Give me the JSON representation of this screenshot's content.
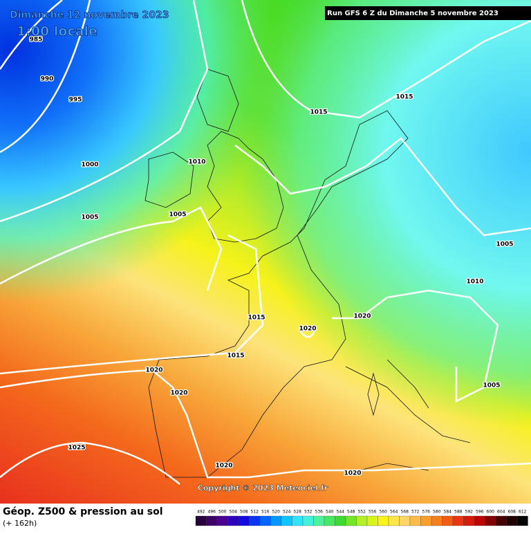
{
  "header": {
    "title": "Dimanche 12 novembre 2023",
    "time": "1:00 locale",
    "run": "Run GFS 6 Z du Dimanche 5 novembre 2023"
  },
  "isobar_labels": [
    985,
    990,
    995,
    1000,
    1005,
    1010,
    1005,
    1015,
    1015,
    1005,
    1010,
    1015,
    1020,
    1020,
    1015,
    1020,
    1020,
    1005,
    1025,
    1020,
    1020
  ],
  "copyright": "Copyright © 2023 Meteociel.fr",
  "footer": {
    "title": "Géop. Z500 & pression au sol",
    "lead": "(+ 162h)"
  },
  "scale": [
    492,
    496,
    500,
    504,
    508,
    512,
    516,
    520,
    524,
    528,
    532,
    536,
    540,
    544,
    548,
    552,
    556,
    560,
    564,
    568,
    572,
    576,
    580,
    584,
    588,
    592,
    596,
    600,
    604,
    608,
    612
  ]
}
